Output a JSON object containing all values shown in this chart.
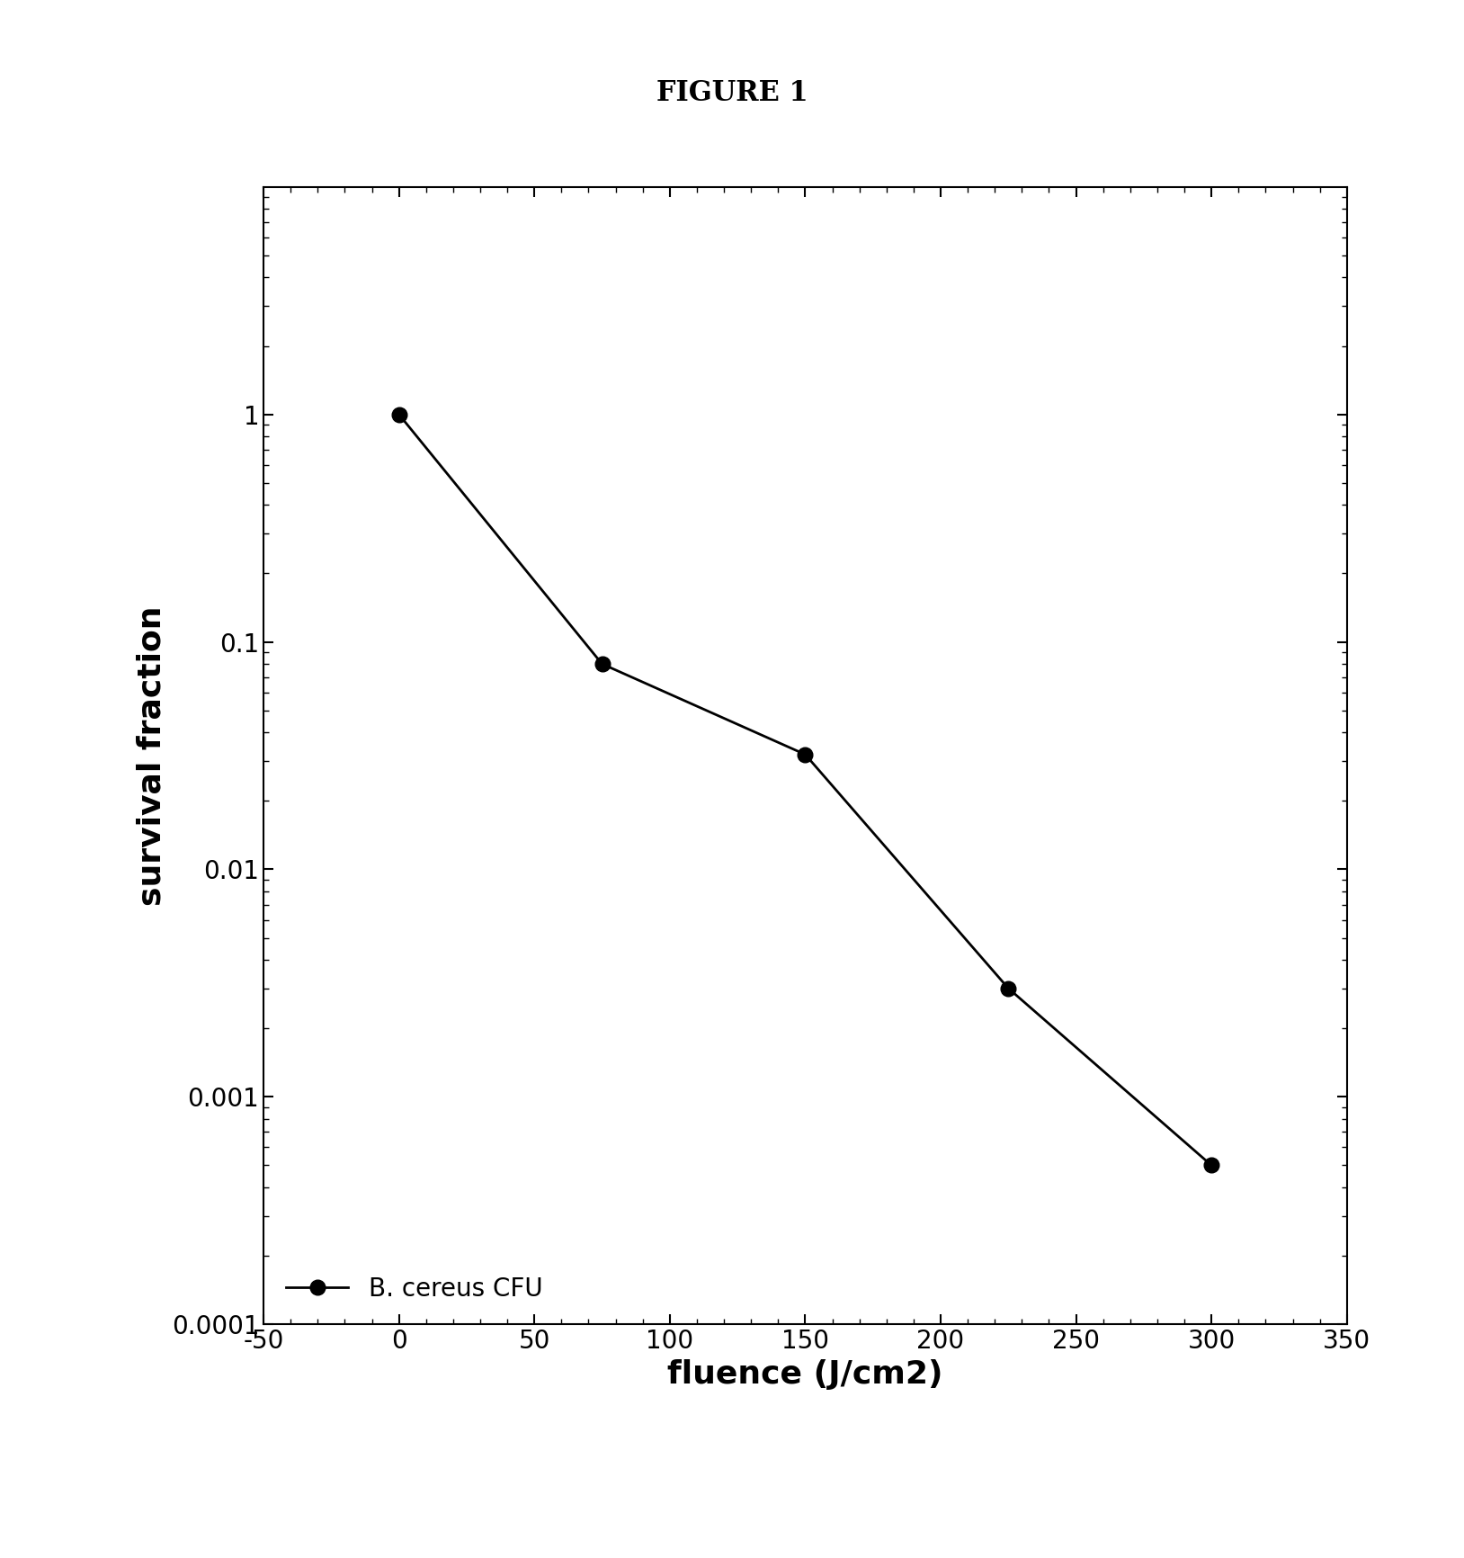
{
  "title": "FIGURE 1",
  "xlabel": "fluence (J/cm2)",
  "ylabel": "survival fraction",
  "x_data": [
    0,
    75,
    150,
    225,
    300
  ],
  "y_data": [
    1.0,
    0.08,
    0.032,
    0.003,
    0.0005
  ],
  "xlim": [
    -50,
    350
  ],
  "ylim": [
    0.0001,
    10
  ],
  "xticks": [
    -50,
    0,
    50,
    100,
    150,
    200,
    250,
    300,
    350
  ],
  "yticks": [
    0.0001,
    0.001,
    0.01,
    0.1,
    1
  ],
  "ytick_labels": [
    "0.0001",
    "0.001",
    "0.01",
    "0.1",
    "1"
  ],
  "legend_label": "B. cereus CFU",
  "line_color": "#000000",
  "marker_color": "#000000",
  "marker_size": 12,
  "line_width": 2,
  "background_color": "#ffffff",
  "title_fontsize": 22,
  "label_fontsize": 26,
  "tick_fontsize": 20,
  "legend_fontsize": 20
}
